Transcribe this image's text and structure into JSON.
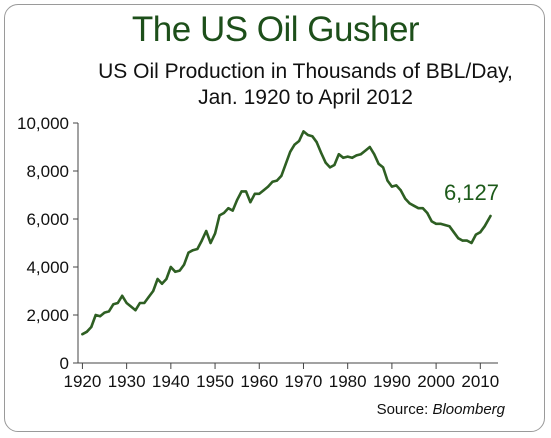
{
  "chart_data": {
    "type": "line",
    "title": "The US Oil Gusher",
    "subtitle_line1": "US Oil Production in Thousands of BBL/Day,",
    "subtitle_line2": "Jan. 1920 to April 2012",
    "xlabel": "",
    "ylabel": "",
    "xlim": [
      1919,
      2014
    ],
    "ylim": [
      0,
      10000
    ],
    "x_ticks": [
      1920,
      1930,
      1940,
      1950,
      1960,
      1970,
      1980,
      1990,
      2000,
      2010
    ],
    "x_tick_labels": [
      "1920",
      "1930",
      "1940",
      "1950",
      "1960",
      "1970",
      "1980",
      "1990",
      "2000",
      "2010"
    ],
    "y_ticks": [
      0,
      2000,
      4000,
      6000,
      8000,
      10000
    ],
    "y_tick_labels": [
      "0",
      "2,000",
      "4,000",
      "6,000",
      "8,000",
      "10,000"
    ],
    "grid": false,
    "legend": "none",
    "line_color": "#2e5f23",
    "annotation": {
      "text": "6,127",
      "x": 2012.3,
      "y": 6127,
      "color": "#1d5a1a"
    },
    "source_label": "Source:",
    "source_name": "Bloomberg",
    "series": [
      {
        "x": [
          1920,
          1921,
          1922,
          1923,
          1924,
          1925,
          1926,
          1927,
          1928,
          1929,
          1930,
          1931,
          1932,
          1933,
          1934,
          1935,
          1936,
          1937,
          1938,
          1939,
          1940,
          1941,
          1942,
          1943,
          1944,
          1945,
          1946,
          1947,
          1948,
          1949,
          1950,
          1951,
          1952,
          1953,
          1954,
          1955,
          1956,
          1957,
          1958,
          1959,
          1960,
          1961,
          1962,
          1963,
          1964,
          1965,
          1966,
          1967,
          1968,
          1969,
          1970,
          1971,
          1972,
          1973,
          1974,
          1975,
          1976,
          1977,
          1978,
          1979,
          1980,
          1981,
          1982,
          1983,
          1984,
          1985,
          1986,
          1987,
          1988,
          1989,
          1990,
          1991,
          1992,
          1993,
          1994,
          1995,
          1996,
          1997,
          1998,
          1999,
          2000,
          2001,
          2002,
          2003,
          2004,
          2005,
          2006,
          2007,
          2008,
          2009,
          2010,
          2011,
          2012.3
        ],
        "values": [
          1200,
          1300,
          1500,
          2000,
          1950,
          2100,
          2150,
          2450,
          2500,
          2800,
          2500,
          2350,
          2200,
          2500,
          2500,
          2750,
          3000,
          3500,
          3300,
          3500,
          4000,
          3800,
          3850,
          4100,
          4600,
          4700,
          4750,
          5100,
          5500,
          5000,
          5400,
          6150,
          6250,
          6450,
          6350,
          6800,
          7150,
          7150,
          6700,
          7050,
          7050,
          7200,
          7350,
          7550,
          7600,
          7800,
          8300,
          8800,
          9100,
          9250,
          9650,
          9500,
          9450,
          9200,
          8750,
          8350,
          8150,
          8250,
          8700,
          8550,
          8600,
          8550,
          8650,
          8700,
          8850,
          9000,
          8700,
          8300,
          8150,
          7600,
          7350,
          7400,
          7200,
          6850,
          6650,
          6550,
          6450,
          6450,
          6250,
          5900,
          5800,
          5800,
          5750,
          5700,
          5450,
          5200,
          5100,
          5100,
          5000,
          5350,
          5450,
          5700,
          6127
        ]
      }
    ]
  }
}
